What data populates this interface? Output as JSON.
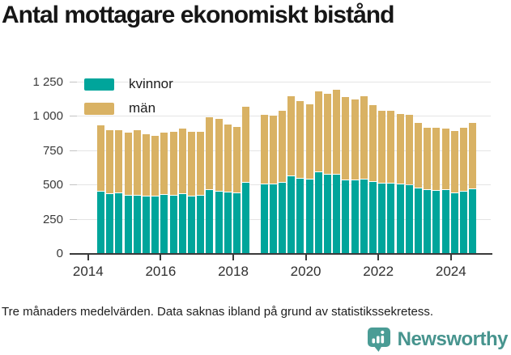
{
  "title": "Antal mottagare ekonomiskt bistånd",
  "footnote": "Tre månaders medelvärden. Data saknas ibland på grund av statistikssekretess.",
  "brand": {
    "name": "Newsworthy",
    "icon": "bar-chart-pin-icon",
    "color": "#47948e",
    "badge_color": "#4a9c95"
  },
  "colors": {
    "kvinnor": "#00a59b",
    "man": "#d9b264",
    "grid": "#e4e4e4",
    "axis": "#3a3a3a"
  },
  "chart_data": {
    "type": "bar",
    "stacked": true,
    "grid": "horizontal",
    "legend_position": "top-left-inside",
    "ylim": [
      0,
      1250
    ],
    "ytick_values": [
      0,
      250,
      500,
      750,
      1000,
      1250
    ],
    "ytick_labels": [
      "0",
      "250",
      "500",
      "750",
      "1 000",
      "1 250"
    ],
    "xtick_labels": [
      "2014",
      "2016",
      "2018",
      "2020",
      "2022",
      "2024"
    ],
    "x": [
      "2014-Q2",
      "2014-Q3",
      "2014-Q4",
      "2015-Q1",
      "2015-Q2",
      "2015-Q3",
      "2015-Q4",
      "2016-Q1",
      "2016-Q2",
      "2016-Q3",
      "2016-Q4",
      "2017-Q1",
      "2017-Q2",
      "2017-Q3",
      "2017-Q4",
      "2018-Q1",
      "2018-Q2",
      "2018-Q3",
      "2018-Q4",
      "2019-Q1",
      "2019-Q2",
      "2019-Q3",
      "2019-Q4",
      "2020-Q1",
      "2020-Q2",
      "2020-Q3",
      "2020-Q4",
      "2021-Q1",
      "2021-Q2",
      "2021-Q3",
      "2021-Q4",
      "2022-Q1",
      "2022-Q2",
      "2022-Q3",
      "2022-Q4",
      "2023-Q1",
      "2023-Q2",
      "2023-Q3",
      "2023-Q4",
      "2024-Q1",
      "2024-Q2",
      "2024-Q3"
    ],
    "missing_data_periods": [
      "2018-Q3"
    ],
    "series": [
      {
        "name": "kvinnor",
        "color": "#00a59b",
        "values": [
          450,
          430,
          435,
          420,
          420,
          415,
          413,
          425,
          420,
          430,
          413,
          420,
          460,
          450,
          440,
          435,
          515,
          null,
          500,
          500,
          510,
          560,
          540,
          535,
          590,
          570,
          570,
          532,
          532,
          535,
          518,
          505,
          505,
          500,
          497,
          472,
          462,
          452,
          462,
          438,
          448,
          468
        ]
      },
      {
        "name": "män",
        "color": "#d9b264",
        "values": [
          480,
          465,
          460,
          460,
          475,
          450,
          442,
          455,
          465,
          475,
          472,
          465,
          530,
          530,
          495,
          485,
          550,
          null,
          505,
          500,
          525,
          585,
          570,
          550,
          590,
          590,
          620,
          603,
          588,
          605,
          562,
          530,
          530,
          515,
          513,
          476,
          451,
          459,
          445,
          449,
          465,
          479
        ]
      }
    ]
  }
}
